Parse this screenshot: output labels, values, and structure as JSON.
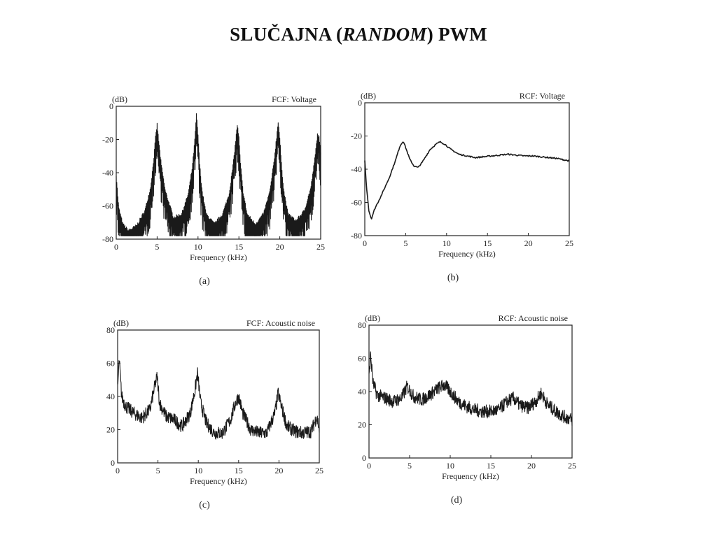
{
  "slide": {
    "title_prefix": "SLUČAJNA (",
    "title_italic": "RANDOM",
    "title_suffix": ") PWM"
  },
  "chart_data": [
    {
      "type": "line",
      "panel": "(a)",
      "title": "FCF: Voltage",
      "ylabel": "(dB)",
      "xlabel": "Frequency (kHz)",
      "xlim": [
        0,
        25
      ],
      "ylim": [
        -80,
        0
      ],
      "xticks": [
        0,
        5,
        10,
        15,
        20,
        25
      ],
      "yticks": [
        0,
        -20,
        -40,
        -60,
        -80
      ],
      "series": [
        {
          "style": "dense-fcf",
          "x": [
            0,
            0.3,
            0.8,
            1.5,
            2.5,
            3.5,
            4.2,
            4.6,
            4.8,
            5.0,
            5.2,
            5.5,
            6.0,
            7.0,
            8.0,
            8.8,
            9.3,
            9.6,
            9.8,
            10.0,
            10.2,
            10.5,
            11.0,
            12.0,
            13.0,
            13.8,
            14.3,
            14.6,
            14.8,
            15.0,
            15.2,
            15.5,
            16.0,
            17.0,
            18.0,
            18.8,
            19.3,
            19.6,
            19.8,
            20.0,
            20.2,
            20.5,
            21.0,
            22.0,
            23.0,
            23.8,
            24.3,
            24.6,
            24.8,
            25.0
          ],
          "y": [
            -42,
            -62,
            -72,
            -76,
            -73,
            -64,
            -50,
            -32,
            -20,
            -12,
            -22,
            -36,
            -52,
            -68,
            -66,
            -54,
            -38,
            -22,
            -6,
            -18,
            -36,
            -52,
            -66,
            -72,
            -66,
            -54,
            -36,
            -22,
            -12,
            -20,
            -36,
            -52,
            -66,
            -72,
            -66,
            -52,
            -34,
            -20,
            -10,
            -20,
            -36,
            -52,
            -66,
            -70,
            -64,
            -50,
            -32,
            -18,
            -20,
            -28
          ]
        }
      ]
    },
    {
      "type": "line",
      "panel": "(b)",
      "title": "RCF: Voltage",
      "ylabel": "(dB)",
      "xlabel": "Frequency (kHz)",
      "xlim": [
        0,
        25
      ],
      "ylim": [
        -80,
        0
      ],
      "xticks": [
        0,
        5,
        10,
        15,
        20,
        25
      ],
      "yticks": [
        0,
        -20,
        -40,
        -60,
        -80
      ],
      "series": [
        {
          "style": "thin",
          "x": [
            0,
            0.2,
            0.5,
            0.8,
            1.2,
            2.0,
            3.0,
            3.8,
            4.3,
            4.7,
            5.0,
            5.5,
            6.0,
            6.5,
            7.0,
            8.0,
            8.7,
            9.2,
            9.8,
            10.5,
            11.5,
            12.5,
            13.5,
            14.5,
            15.5,
            16.5,
            17.5,
            18.5,
            19.5,
            20.5,
            21.5,
            22.5,
            23.5,
            24.5,
            25.0
          ],
          "y": [
            -35,
            -50,
            -65,
            -70,
            -64,
            -56,
            -45,
            -34,
            -26,
            -23,
            -27,
            -34,
            -38,
            -39,
            -36,
            -28,
            -25,
            -23.5,
            -25,
            -28,
            -31,
            -32,
            -33,
            -32.5,
            -32,
            -31.5,
            -31,
            -31.5,
            -32,
            -32,
            -32.5,
            -33,
            -33.5,
            -34.5,
            -35
          ]
        }
      ]
    },
    {
      "type": "line",
      "panel": "(c)",
      "title": "FCF: Acoustic noise",
      "ylabel": "(dB)",
      "xlabel": "Frequency (kHz)",
      "xlim": [
        0,
        25
      ],
      "ylim": [
        0,
        80
      ],
      "xticks": [
        0,
        5,
        10,
        15,
        20,
        25
      ],
      "yticks": [
        80,
        60,
        40,
        20,
        0
      ],
      "series": [
        {
          "style": "noisy",
          "x": [
            0,
            0.2,
            0.5,
            1.0,
            2.0,
            3.0,
            4.0,
            4.6,
            4.9,
            5.2,
            6.0,
            7.0,
            8.0,
            9.0,
            9.6,
            9.9,
            10.3,
            11.0,
            12.0,
            13.0,
            14.0,
            14.6,
            15.0,
            15.5,
            16.5,
            17.5,
            18.5,
            19.5,
            19.9,
            20.3,
            21.0,
            22.0,
            23.0,
            24.0,
            24.7,
            25.0
          ],
          "y": [
            45,
            62,
            40,
            34,
            30,
            27,
            32,
            46,
            52,
            36,
            28,
            26,
            22,
            30,
            44,
            54,
            36,
            24,
            18,
            18,
            26,
            36,
            40,
            30,
            20,
            18,
            18,
            30,
            42,
            34,
            22,
            19,
            18,
            19,
            28,
            20
          ]
        }
      ]
    },
    {
      "type": "line",
      "panel": "(d)",
      "title": "RCF: Acoustic noise",
      "ylabel": "(dB)",
      "xlabel": "Frequency (kHz)",
      "xlim": [
        0,
        25
      ],
      "ylim": [
        0,
        80
      ],
      "xticks": [
        0,
        5,
        10,
        15,
        20,
        25
      ],
      "yticks": [
        80,
        60,
        40,
        20,
        0
      ],
      "series": [
        {
          "style": "noisy",
          "x": [
            0,
            0.2,
            0.5,
            1.0,
            2.0,
            3.0,
            4.0,
            4.7,
            5.5,
            6.5,
            7.5,
            8.5,
            9.3,
            10.0,
            11.0,
            12.0,
            13.0,
            14.0,
            15.0,
            16.0,
            17.0,
            17.8,
            18.5,
            19.5,
            20.5,
            21.2,
            22.0,
            23.0,
            24.0,
            25.0
          ],
          "y": [
            48,
            62,
            45,
            38,
            36,
            34,
            36,
            43,
            37,
            35,
            38,
            42,
            44,
            40,
            34,
            31,
            29,
            28,
            28,
            29,
            34,
            36,
            32,
            30,
            34,
            39,
            32,
            28,
            25,
            23
          ]
        }
      ]
    }
  ]
}
